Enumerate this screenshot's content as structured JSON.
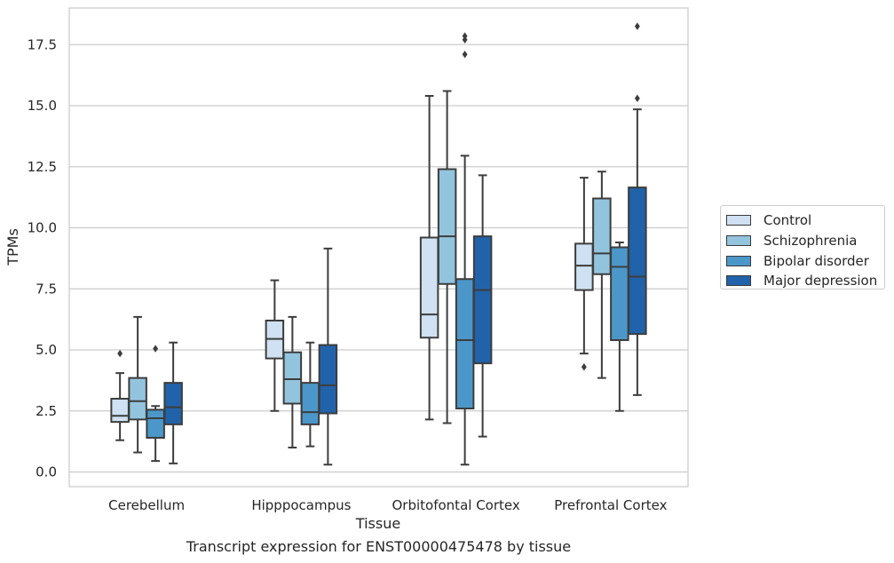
{
  "caption": "Transcript expression for ENST00000475478 by tissue",
  "chart_data": {
    "type": "box",
    "xlabel": "Tissue",
    "ylabel": "TPMs",
    "ylim": [
      -0.6,
      19.0
    ],
    "yticks": [
      0.0,
      2.5,
      5.0,
      7.5,
      10.0,
      12.5,
      15.0,
      17.5
    ],
    "ytick_labels": [
      "0.0",
      "2.5",
      "5.0",
      "7.5",
      "10.0",
      "12.5",
      "15.0",
      "17.5"
    ],
    "categories": [
      "Cerebellum",
      "Hipppocampus",
      "Orbitofontal Cortex",
      "Prefrontal Cortex"
    ],
    "grid": "horizontal",
    "legend_position": "right",
    "series": [
      {
        "name": "Control",
        "color": "#cfe1f2",
        "boxes": [
          {
            "whislo": 1.3,
            "q1": 2.05,
            "median": 2.3,
            "q3": 3.0,
            "whishi": 4.05,
            "fliers": [
              4.85
            ]
          },
          {
            "whislo": 2.5,
            "q1": 4.65,
            "median": 5.45,
            "q3": 6.2,
            "whishi": 7.85,
            "fliers": []
          },
          {
            "whislo": 2.15,
            "q1": 5.5,
            "median": 6.45,
            "q3": 9.6,
            "whishi": 15.4,
            "fliers": []
          },
          {
            "whislo": 4.85,
            "q1": 7.45,
            "median": 8.45,
            "q3": 9.35,
            "whishi": 12.05,
            "fliers": [
              4.3
            ]
          }
        ]
      },
      {
        "name": "Schizophrenia",
        "color": "#93c4de",
        "boxes": [
          {
            "whislo": 0.8,
            "q1": 2.15,
            "median": 2.9,
            "q3": 3.85,
            "whishi": 6.35,
            "fliers": []
          },
          {
            "whislo": 1.0,
            "q1": 2.8,
            "median": 3.8,
            "q3": 4.9,
            "whishi": 6.35,
            "fliers": []
          },
          {
            "whislo": 2.0,
            "q1": 7.7,
            "median": 9.65,
            "q3": 12.4,
            "whishi": 15.6,
            "fliers": []
          },
          {
            "whislo": 3.85,
            "q1": 8.1,
            "median": 8.95,
            "q3": 11.2,
            "whishi": 12.3,
            "fliers": []
          }
        ]
      },
      {
        "name": "Bipolar disorder",
        "color": "#4b97c9",
        "boxes": [
          {
            "whislo": 0.45,
            "q1": 1.4,
            "median": 2.2,
            "q3": 2.55,
            "whishi": 2.7,
            "fliers": [
              5.05
            ]
          },
          {
            "whislo": 1.05,
            "q1": 1.95,
            "median": 2.45,
            "q3": 3.65,
            "whishi": 5.3,
            "fliers": []
          },
          {
            "whislo": 0.3,
            "q1": 2.6,
            "median": 5.4,
            "q3": 7.9,
            "whishi": 12.95,
            "fliers": [
              17.1,
              17.7,
              17.85
            ]
          },
          {
            "whislo": 2.5,
            "q1": 5.4,
            "median": 8.4,
            "q3": 9.2,
            "whishi": 9.4,
            "fliers": []
          }
        ]
      },
      {
        "name": "Major depression",
        "color": "#2163aa",
        "boxes": [
          {
            "whislo": 0.35,
            "q1": 1.95,
            "median": 2.65,
            "q3": 3.65,
            "whishi": 5.3,
            "fliers": []
          },
          {
            "whislo": 0.3,
            "q1": 2.4,
            "median": 3.55,
            "q3": 5.2,
            "whishi": 9.15,
            "fliers": []
          },
          {
            "whislo": 1.45,
            "q1": 4.45,
            "median": 7.45,
            "q3": 9.65,
            "whishi": 12.15,
            "fliers": []
          },
          {
            "whislo": 3.15,
            "q1": 5.65,
            "median": 8.0,
            "q3": 11.65,
            "whishi": 14.85,
            "fliers": [
              15.3,
              18.25
            ]
          }
        ]
      }
    ]
  }
}
